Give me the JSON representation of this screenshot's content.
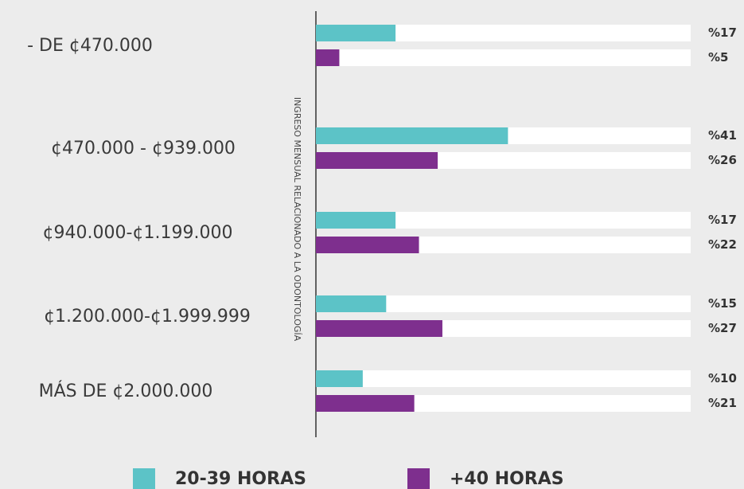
{
  "chart_data": {
    "type": "bar",
    "orientation": "horizontal",
    "y_label": "INGRESO MENSUAL RELACIONADO A LA ODONTOLOGÍA",
    "categories": [
      "- DE ¢470.000",
      "¢470.000 - ¢939.000",
      "¢940.000-¢1.199.000",
      "¢1.200.000-¢1.999.999",
      "MÁS DE ¢2.000.000"
    ],
    "series": [
      {
        "name": "20-39 HORAS",
        "color": "#5cc3c7",
        "values": [
          17,
          41,
          17,
          15,
          10
        ],
        "value_labels": [
          "%17",
          "%41",
          "%17",
          "%15",
          "%10"
        ]
      },
      {
        "name": "+40 HORAS",
        "color": "#7e2f8e",
        "values": [
          5,
          26,
          22,
          27,
          21
        ],
        "value_labels": [
          "%5",
          "%26",
          "%22",
          "%27",
          "%21"
        ]
      }
    ],
    "xlim": [
      0,
      80
    ]
  }
}
